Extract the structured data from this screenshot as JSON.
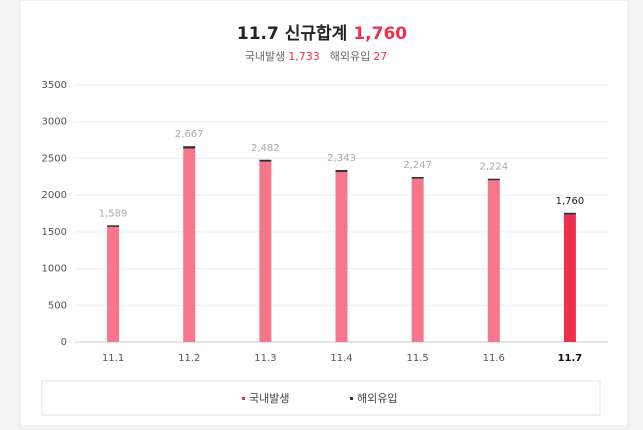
{
  "chart_data": {
    "type": "stacked-bar",
    "title": "11.7 신규합계",
    "title_value": "1,760",
    "subtitle": [
      {
        "label": "국내발생",
        "value": "1,733"
      },
      {
        "label": "해외유입",
        "value": "27"
      }
    ],
    "categories": [
      "11.1",
      "11.2",
      "11.3",
      "11.4",
      "11.5",
      "11.6",
      "11.7"
    ],
    "series": [
      {
        "name": "국내발생",
        "color": "#f8768a",
        "values": [
          1567,
          2635,
          2455,
          2314,
          2224,
          2202,
          1733
        ]
      },
      {
        "name": "해외유입",
        "color": "#333333",
        "values": [
          22,
          32,
          27,
          29,
          23,
          22,
          27
        ]
      }
    ],
    "totals": [
      "1,589",
      "2,667",
      "2,482",
      "2,343",
      "2,247",
      "2,224",
      "1,760"
    ],
    "highlight": 6,
    "highlight_color": "#f0304f",
    "ylim": [
      0,
      3500
    ],
    "yticks": [
      0,
      500,
      1000,
      1500,
      2000,
      2500,
      3000,
      3500
    ],
    "grid": true,
    "legend": "bottom"
  }
}
